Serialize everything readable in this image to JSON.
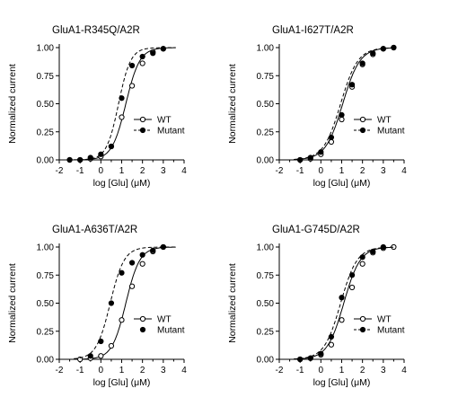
{
  "chart_data": [
    {
      "type": "scatter",
      "title": "GluA1-R345Q/A2R",
      "xlabel": "log [Glu] (μM)",
      "ylabel": "Normalized current",
      "xlim": [
        -2,
        4
      ],
      "ylim": [
        0,
        1.0
      ],
      "xticks": [
        "-2",
        "-1",
        "0",
        "1",
        "2",
        "3",
        "4"
      ],
      "yticks": [
        "0.00",
        "0.25",
        "0.50",
        "0.75",
        "1.00"
      ],
      "legend_position": "lower-right",
      "series": [
        {
          "name": "WT",
          "marker": "open-circle",
          "line": "solid",
          "x": [
            -1.5,
            -1.0,
            -0.5,
            0.0,
            0.5,
            1.0,
            1.5,
            2.0,
            2.5,
            3.0
          ],
          "y": [
            0.0,
            0.0,
            0.01,
            0.03,
            0.12,
            0.38,
            0.66,
            0.86,
            0.96,
            0.99
          ],
          "fit": {
            "ec50_log": 1.2,
            "hill_slope": 1.3
          }
        },
        {
          "name": "Mutant",
          "marker": "filled-circle",
          "line": "dashed",
          "x": [
            -1.5,
            -1.0,
            -0.5,
            0.0,
            0.5,
            1.0,
            1.5,
            2.0,
            2.5,
            3.0
          ],
          "y": [
            0.0,
            0.0,
            0.02,
            0.05,
            0.12,
            0.55,
            0.84,
            0.92,
            0.95,
            0.99
          ],
          "fit": {
            "ec50_log": 0.85,
            "hill_slope": 1.5
          }
        }
      ]
    },
    {
      "type": "scatter",
      "title": "GluA1-I627T/A2R",
      "xlabel": "log [Glu] (μM)",
      "ylabel": "Normalized current",
      "xlim": [
        -2,
        4
      ],
      "ylim": [
        0,
        1.0
      ],
      "xticks": [
        "-2",
        "-1",
        "0",
        "1",
        "2",
        "3",
        "4"
      ],
      "yticks": [
        "0.00",
        "0.25",
        "0.50",
        "0.75",
        "1.00"
      ],
      "legend_position": "lower-right",
      "series": [
        {
          "name": "WT",
          "marker": "open-circle",
          "line": "solid",
          "x": [
            -1.0,
            -0.5,
            0.0,
            0.5,
            1.0,
            1.5,
            2.0,
            2.5,
            3.0,
            3.5
          ],
          "y": [
            0.0,
            0.01,
            0.05,
            0.16,
            0.36,
            0.65,
            0.85,
            0.94,
            0.99,
            1.0
          ],
          "fit": {
            "ec50_log": 1.05,
            "hill_slope": 1.05
          }
        },
        {
          "name": "Mutant",
          "marker": "filled-circle",
          "line": "dashed",
          "x": [
            -1.0,
            -0.5,
            0.0,
            0.5,
            1.0,
            1.5,
            2.0,
            2.5,
            3.0,
            3.5
          ],
          "y": [
            0.0,
            0.02,
            0.07,
            0.2,
            0.4,
            0.67,
            0.86,
            0.95,
            0.99,
            1.0
          ],
          "fit": {
            "ec50_log": 0.95,
            "hill_slope": 1.05
          }
        }
      ]
    },
    {
      "type": "scatter",
      "title": "GluA1-A636T/A2R",
      "xlabel": "log [Glu] (μM)",
      "ylabel": "Normalized current",
      "xlim": [
        -2,
        4
      ],
      "ylim": [
        0,
        1.0
      ],
      "xticks": [
        "-2",
        "-1",
        "0",
        "1",
        "2",
        "3",
        "4"
      ],
      "yticks": [
        "0.00",
        "0.25",
        "0.50",
        "0.75",
        "1.00"
      ],
      "legend_position": "lower-right",
      "series": [
        {
          "name": "WT",
          "marker": "open-circle",
          "line": "solid",
          "x": [
            -1.0,
            -0.5,
            0.0,
            0.5,
            1.0,
            1.5,
            2.0,
            2.5,
            3.0
          ],
          "y": [
            0.0,
            0.01,
            0.03,
            0.12,
            0.35,
            0.65,
            0.85,
            0.96,
            1.0
          ],
          "fit": {
            "ec50_log": 1.2,
            "hill_slope": 1.3
          }
        },
        {
          "name": "Mutant",
          "marker": "filled-circle",
          "line": "none",
          "x": [
            -0.5,
            0.0,
            0.5,
            1.0,
            1.5,
            2.0,
            2.5,
            3.0
          ],
          "y": [
            0.03,
            0.16,
            0.5,
            0.77,
            0.86,
            0.93,
            0.97,
            1.0
          ],
          "fit": {
            "ec50_log": 0.45,
            "hill_slope": 1.3
          }
        }
      ]
    },
    {
      "type": "scatter",
      "title": "GluA1-G745D/A2R",
      "xlabel": "log [Glu] (μM)",
      "ylabel": "Normalized current",
      "xlim": [
        -2,
        4
      ],
      "ylim": [
        0,
        1.0
      ],
      "xticks": [
        "-2",
        "-1",
        "0",
        "1",
        "2",
        "3",
        "4"
      ],
      "yticks": [
        "0.00",
        "0.25",
        "0.50",
        "0.75",
        "1.00"
      ],
      "legend_position": "lower-right",
      "series": [
        {
          "name": "WT",
          "marker": "open-circle",
          "line": "solid",
          "x": [
            -1.0,
            -0.5,
            0.0,
            0.5,
            1.0,
            1.5,
            2.0,
            2.5,
            3.0,
            3.5
          ],
          "y": [
            0.0,
            0.01,
            0.04,
            0.13,
            0.35,
            0.64,
            0.85,
            0.95,
            0.99,
            1.0
          ],
          "fit": {
            "ec50_log": 1.1,
            "hill_slope": 1.1
          }
        },
        {
          "name": "Mutant",
          "marker": "filled-circle",
          "line": "dashed",
          "x": [
            -1.0,
            -0.5,
            0.0,
            0.5,
            1.0,
            1.5,
            2.0,
            2.5,
            3.0
          ],
          "y": [
            0.0,
            0.01,
            0.05,
            0.2,
            0.55,
            0.75,
            0.91,
            0.96,
            1.0
          ],
          "fit": {
            "ec50_log": 0.95,
            "hill_slope": 1.1
          }
        }
      ]
    }
  ]
}
